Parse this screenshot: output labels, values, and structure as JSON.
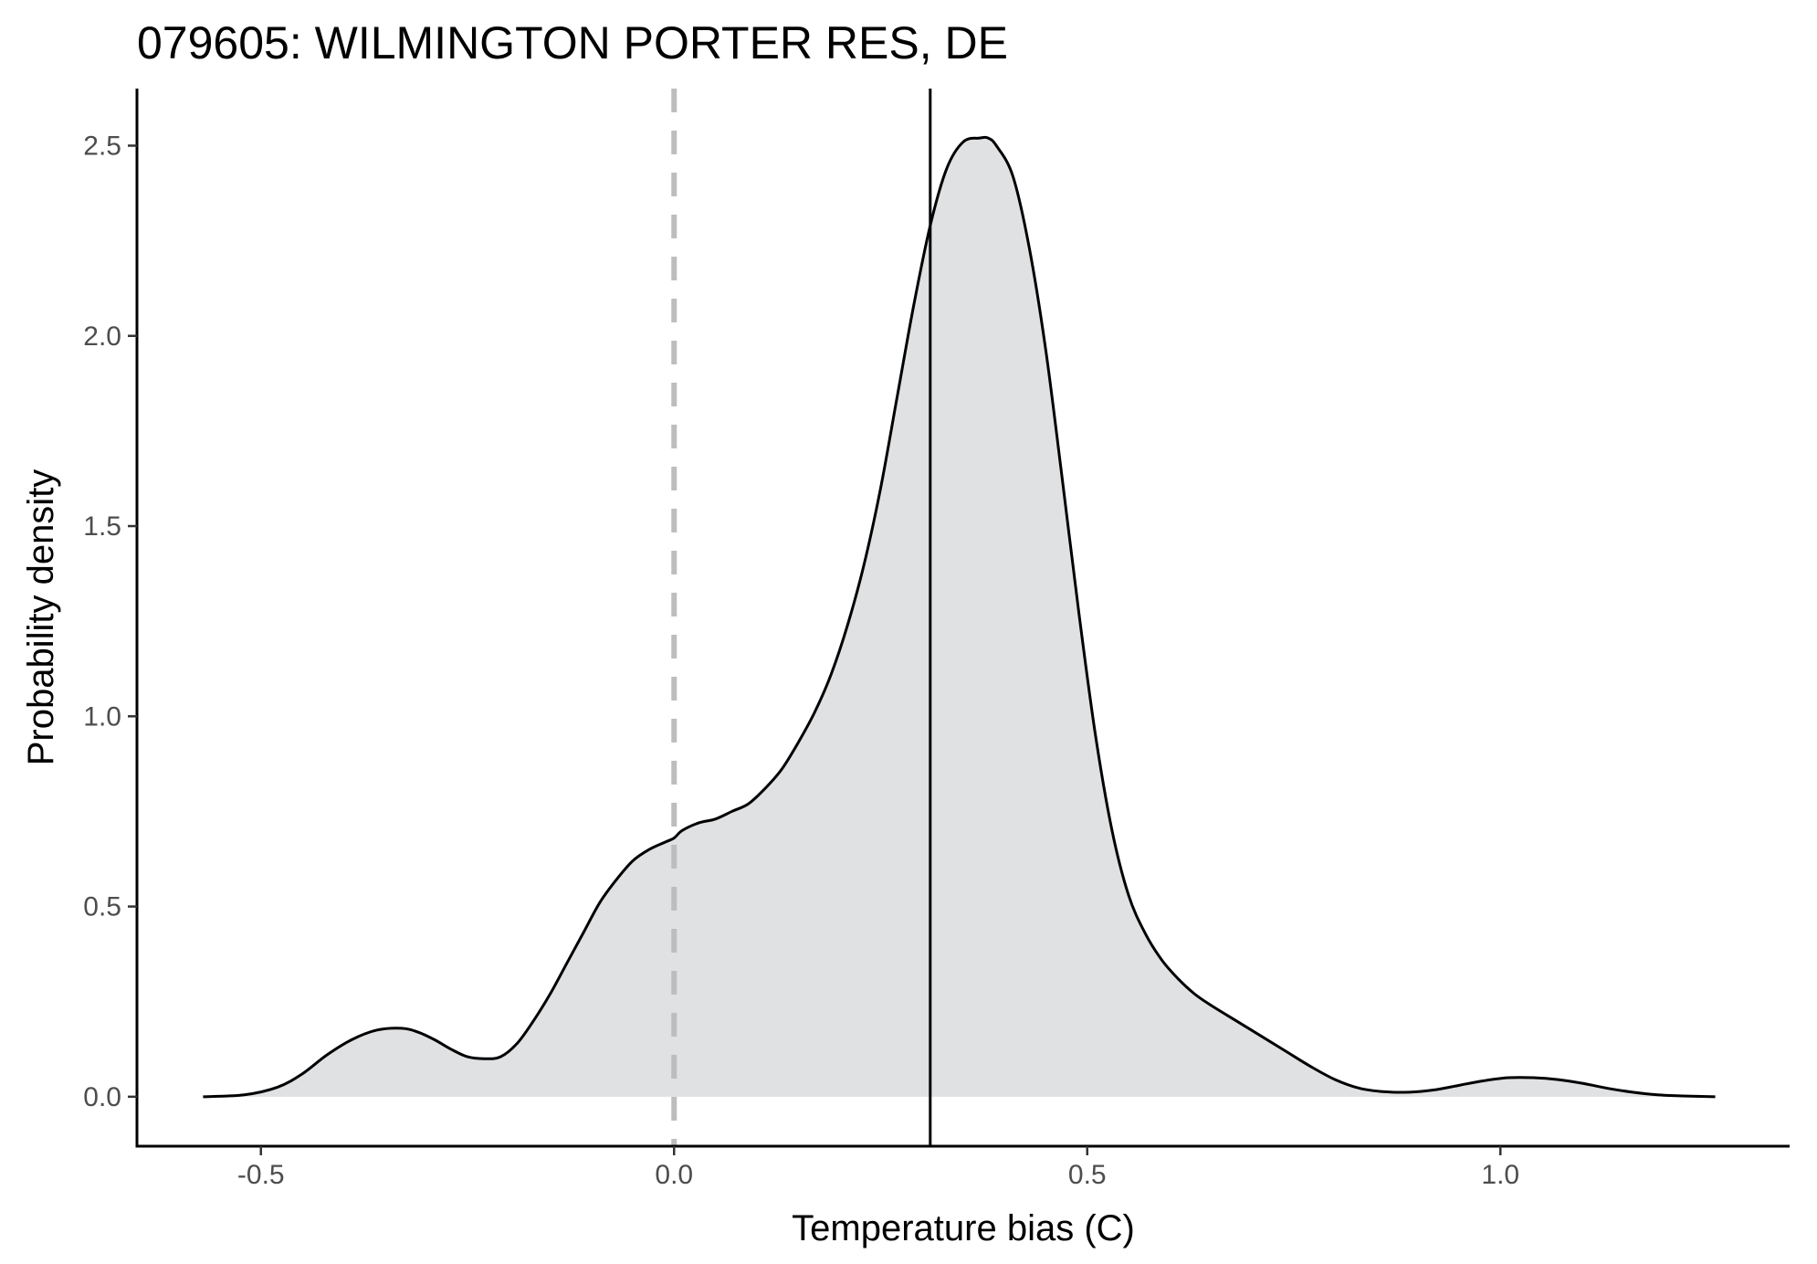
{
  "chart_data": {
    "type": "area",
    "title": "079605: WILMINGTON PORTER RES, DE",
    "xlabel": "Temperature bias (C)",
    "ylabel": "Probability density",
    "xlim": [
      -0.65,
      1.35
    ],
    "ylim": [
      -0.13,
      2.65
    ],
    "x_ticks": [
      -0.5,
      0.0,
      0.5,
      1.0
    ],
    "x_tick_labels": [
      "-0.5",
      "0.0",
      "0.5",
      "1.0"
    ],
    "y_ticks": [
      0.0,
      0.5,
      1.0,
      1.5,
      2.0,
      2.5
    ],
    "y_tick_labels": [
      "0.0",
      "0.5",
      "1.0",
      "1.5",
      "2.0",
      "2.5"
    ],
    "grid": false,
    "fill_color": "#dfe1e3",
    "line_color": "#000000",
    "series": [
      {
        "x": [
          -0.57,
          -0.52,
          -0.48,
          -0.45,
          -0.42,
          -0.39,
          -0.36,
          -0.33,
          -0.31,
          -0.29,
          -0.27,
          -0.25,
          -0.23,
          -0.21,
          -0.19,
          -0.17,
          -0.15,
          -0.13,
          -0.11,
          -0.09,
          -0.07,
          -0.05,
          -0.03,
          -0.01,
          0.0,
          0.01,
          0.03,
          0.05,
          0.07,
          0.09,
          0.11,
          0.13,
          0.15,
          0.17,
          0.19,
          0.21,
          0.23,
          0.25,
          0.27,
          0.29,
          0.31,
          0.33,
          0.35,
          0.37,
          0.38,
          0.39,
          0.41,
          0.43,
          0.45,
          0.47,
          0.49,
          0.51,
          0.53,
          0.55,
          0.57,
          0.59,
          0.61,
          0.63,
          0.65,
          0.68,
          0.71,
          0.74,
          0.77,
          0.8,
          0.83,
          0.86,
          0.89,
          0.92,
          0.95,
          0.98,
          1.01,
          1.04,
          1.07,
          1.1,
          1.13,
          1.16,
          1.19,
          1.22,
          1.26
        ],
        "y": [
          0.0,
          0.005,
          0.025,
          0.06,
          0.11,
          0.15,
          0.175,
          0.18,
          0.17,
          0.15,
          0.125,
          0.105,
          0.1,
          0.105,
          0.14,
          0.2,
          0.27,
          0.35,
          0.43,
          0.51,
          0.57,
          0.62,
          0.65,
          0.67,
          0.68,
          0.7,
          0.72,
          0.73,
          0.75,
          0.77,
          0.81,
          0.86,
          0.93,
          1.01,
          1.11,
          1.24,
          1.4,
          1.6,
          1.84,
          2.08,
          2.29,
          2.44,
          2.51,
          2.52,
          2.52,
          2.5,
          2.42,
          2.23,
          1.96,
          1.62,
          1.27,
          0.95,
          0.7,
          0.53,
          0.43,
          0.36,
          0.31,
          0.27,
          0.24,
          0.2,
          0.16,
          0.12,
          0.08,
          0.045,
          0.022,
          0.013,
          0.012,
          0.018,
          0.03,
          0.042,
          0.05,
          0.05,
          0.045,
          0.035,
          0.022,
          0.012,
          0.005,
          0.002,
          0.0
        ]
      }
    ],
    "reference_lines": [
      {
        "x": 0.0,
        "style": "dashed",
        "color": "#bdbdbd"
      },
      {
        "x": 0.31,
        "style": "solid",
        "color": "#000000"
      }
    ]
  }
}
